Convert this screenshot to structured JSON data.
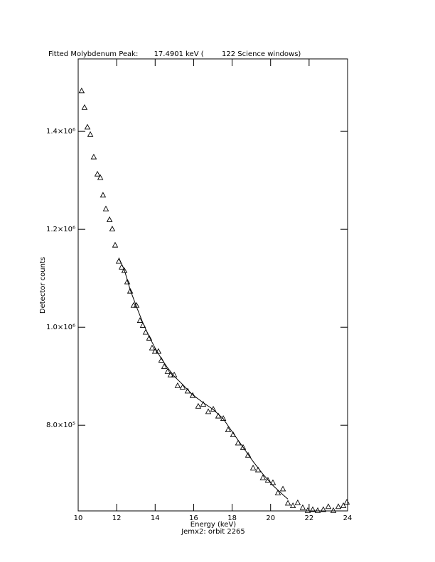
{
  "chart_data": {
    "type": "scatter",
    "title": "Fitted Molybdenum Peak:       17.4901 keV (        122 Science windows)",
    "x_label": "Energy (keV)",
    "subtitle": "Jemx2: orbit 2265",
    "y_label": "Detector counts",
    "xlim": [
      10,
      24
    ],
    "xticks": [
      10,
      12,
      14,
      16,
      18,
      20,
      22,
      24
    ],
    "ylim": [
      625000,
      1548000
    ],
    "yticks": [
      {
        "value": 800000,
        "label": "8.0×10⁵"
      },
      {
        "value": 1000000,
        "label": "1.0×10⁶"
      },
      {
        "value": 1200000,
        "label": "1.2×10⁶"
      },
      {
        "value": 1400000,
        "label": "1.4×10⁶"
      }
    ],
    "color": "#000000",
    "series": [
      {
        "style": "markers",
        "x": [
          10.18,
          10.33,
          10.48,
          10.63,
          10.81,
          11.0,
          11.15,
          11.29,
          11.44,
          11.63,
          11.77,
          11.92,
          12.11,
          12.26,
          12.4,
          12.55,
          12.7,
          12.88,
          13.03,
          13.21,
          13.36,
          13.51,
          13.69,
          13.84,
          13.99,
          14.17,
          14.32,
          14.47,
          14.65,
          14.8,
          14.99,
          15.17,
          15.43,
          15.69,
          15.95,
          16.24,
          16.5,
          16.76,
          17.02,
          17.28,
          17.54,
          17.79,
          18.05,
          18.31,
          18.57,
          18.83,
          19.09,
          19.35,
          19.6,
          19.86,
          20.12,
          20.38,
          20.64,
          20.9,
          21.16,
          21.41,
          21.67,
          21.93,
          22.19,
          22.45,
          22.74,
          23.0,
          23.26,
          23.52,
          23.78,
          23.96
        ],
        "values": [
          1483000,
          1449000,
          1409000,
          1394000,
          1348000,
          1313000,
          1306000,
          1270000,
          1242000,
          1220000,
          1201000,
          1168000,
          1135000,
          1123000,
          1116000,
          1093000,
          1074000,
          1045000,
          1045000,
          1014000,
          1004000,
          990000,
          978000,
          958000,
          951000,
          951000,
          933000,
          920000,
          910000,
          903000,
          903000,
          881000,
          878000,
          870000,
          861000,
          839000,
          843000,
          828000,
          833000,
          819000,
          814000,
          791000,
          781000,
          764000,
          755000,
          739000,
          713000,
          709000,
          693000,
          688000,
          683000,
          662000,
          670000,
          641000,
          636000,
          642000,
          632000,
          626000,
          628000,
          626000,
          628000,
          634000,
          626000,
          634000,
          636000,
          643000
        ]
      },
      {
        "style": "line",
        "x": [
          12.11,
          12.4,
          12.7,
          13.03,
          13.36,
          13.69,
          13.99,
          14.32,
          14.65,
          14.99,
          15.43,
          15.95,
          16.5,
          17.02,
          17.54,
          18.05,
          18.57,
          19.09,
          19.6,
          20.12,
          20.64,
          20.9
        ],
        "values": [
          1142000,
          1117000,
          1077000,
          1042000,
          1009000,
          981000,
          958000,
          936000,
          917000,
          900000,
          883000,
          862000,
          846000,
          832000,
          813000,
          784000,
          755000,
          726000,
          700000,
          677000,
          658000,
          649000
        ]
      }
    ]
  }
}
